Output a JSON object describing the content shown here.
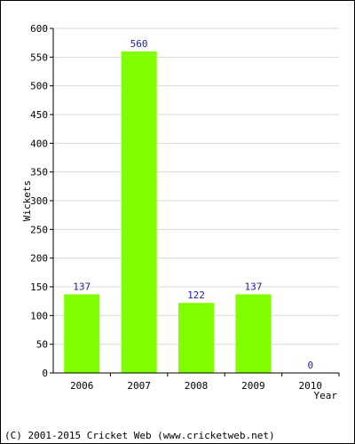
{
  "chart_data": {
    "type": "bar",
    "categories": [
      "2006",
      "2007",
      "2008",
      "2009",
      "2010"
    ],
    "values": [
      137,
      560,
      122,
      137,
      0
    ],
    "data_labels": [
      "137",
      "560",
      "122",
      "137",
      "0"
    ],
    "xlabel": "Year",
    "ylabel": "Wickets",
    "ylim": [
      0,
      600
    ],
    "yticks": [
      0,
      50,
      100,
      150,
      200,
      250,
      300,
      350,
      400,
      450,
      500,
      550,
      600
    ],
    "grid": true,
    "bar_color": "#80ff00",
    "label_color": "#1f1f9f",
    "grid_color": "#d9d9d9"
  },
  "footer": "(C) 2001-2015 Cricket Web (www.cricketweb.net)"
}
